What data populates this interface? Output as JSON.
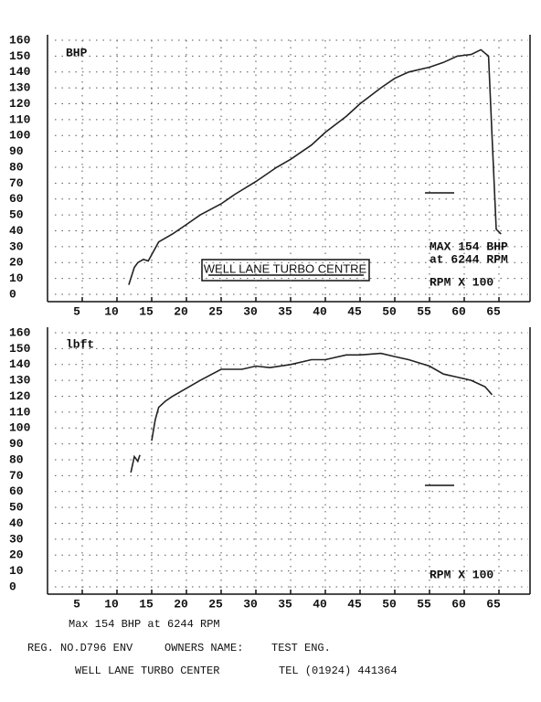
{
  "chart_data": [
    {
      "type": "line",
      "ylabel": "BHP",
      "x": [
        11.7,
        12.5,
        13,
        13.8,
        14.5,
        15,
        16,
        18,
        20,
        22,
        25,
        27,
        30,
        33,
        35,
        38,
        40,
        43,
        45,
        48,
        50,
        52,
        55,
        57,
        59,
        61,
        62.4,
        63.5,
        64,
        64.6,
        65.3
      ],
      "values": [
        6,
        17,
        20,
        22,
        21,
        25,
        33,
        38,
        44,
        50,
        57,
        63,
        71,
        80,
        85,
        94,
        102,
        112,
        120,
        130,
        136,
        140,
        143,
        146,
        150,
        151,
        154,
        150,
        100,
        41,
        38
      ],
      "color": "#222",
      "xlim": [
        0,
        70
      ],
      "ylim": [
        0,
        160
      ],
      "xticks": [
        5,
        10,
        15,
        20,
        25,
        30,
        35,
        40,
        45,
        50,
        55,
        60,
        65
      ],
      "yticks": [
        0,
        10,
        20,
        30,
        40,
        50,
        60,
        70,
        80,
        90,
        100,
        110,
        120,
        130,
        140,
        150,
        160
      ],
      "grid": true,
      "annotations": [
        "MAX 154 BHP",
        "at 6244 RPM",
        "RPM X 100",
        "WELL LANE TURBO CENTRE"
      ]
    },
    {
      "type": "line",
      "ylabel": "lbft",
      "x": [
        12,
        12.5,
        13,
        13.3,
        14,
        15,
        15.5,
        16,
        17,
        18,
        20,
        22,
        25,
        28,
        30,
        32,
        35,
        38,
        40,
        43,
        45,
        48,
        50,
        52,
        55,
        57,
        59,
        61,
        63,
        64
      ],
      "values": [
        72,
        82,
        79,
        83,
        null,
        92,
        105,
        113,
        117,
        120,
        125,
        130,
        137,
        137,
        139,
        138,
        140,
        143,
        143,
        146,
        146,
        147,
        145,
        143,
        139,
        134,
        132,
        130,
        126,
        121
      ],
      "color": "#222",
      "xlim": [
        0,
        70
      ],
      "ylim": [
        0,
        160
      ],
      "xticks": [
        5,
        10,
        15,
        20,
        25,
        30,
        35,
        40,
        45,
        50,
        55,
        60,
        65
      ],
      "yticks": [
        0,
        10,
        20,
        30,
        40,
        50,
        60,
        70,
        80,
        90,
        100,
        110,
        120,
        130,
        140,
        150,
        160
      ],
      "grid": true,
      "annotations": [
        "RPM X 100"
      ]
    }
  ],
  "footer": {
    "summary": "Max 154 BHP at 6244 RPM",
    "reg": "REG. NO.D796 ENV",
    "owner": "OWNERS NAME:",
    "engineer": "TEST ENG.",
    "company": "WELL LANE TURBO CENTER",
    "tel": "TEL (01924) 441364"
  }
}
